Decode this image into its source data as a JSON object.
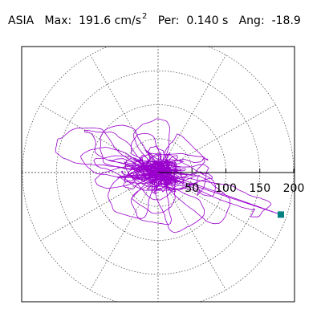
{
  "title": {
    "station": "ASIA",
    "max_label": "Max:",
    "max_value": "191.6 cm/s",
    "max_exponent": "2",
    "per_label": "Per:",
    "per_value": "0.140 s",
    "ang_label": "Ang:",
    "ang_value": "-18.9"
  },
  "chart_data": {
    "type": "polar-particle-motion",
    "radial_ticks": [
      50,
      100,
      150,
      200
    ],
    "rmax": 200,
    "grid": true,
    "spoke_angles_deg": [
      0,
      30,
      60,
      90,
      120,
      150,
      180,
      210,
      240,
      270,
      300,
      330
    ],
    "peak_point": {
      "x": 181,
      "y": -62
    },
    "trace_color": "#9900cc",
    "marker_color": "#008080"
  }
}
